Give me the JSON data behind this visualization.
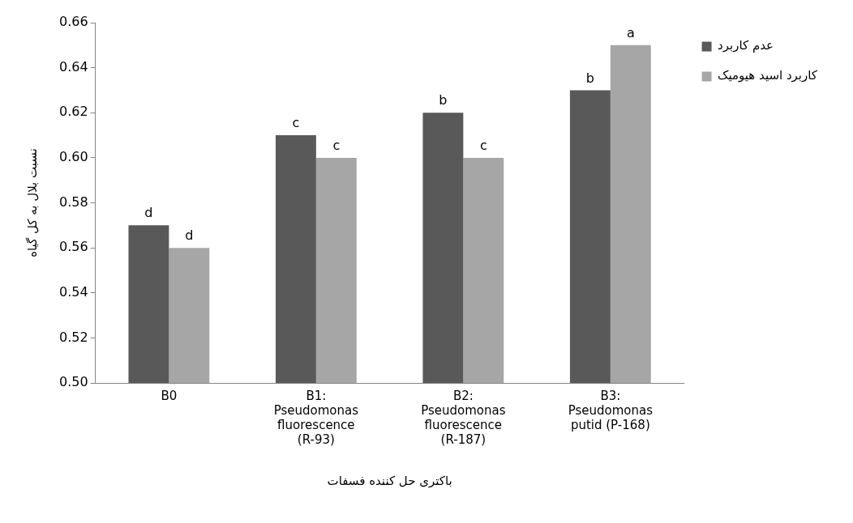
{
  "chart_data": {
    "type": "bar",
    "xlabel": "باکتری حل کننده فسفات",
    "ylabel": "نسبت بلال به کل گیاه",
    "categories": [
      "B0",
      "B1: Pseudomonas fluorescence (R-93)",
      "B2: Pseudomonas fluorescence (R-187)",
      "B3: Pseudomonas putid (P-168)"
    ],
    "series": [
      {
        "name": "عدم کاربرد",
        "color": "#595959",
        "values": [
          0.57,
          0.61,
          0.62,
          0.63
        ]
      },
      {
        "name": "کاربرد اسید هیومیک",
        "color": "#a6a6a6",
        "values": [
          0.56,
          0.6,
          0.6,
          0.65
        ]
      }
    ],
    "ylim": [
      0.5,
      0.66
    ],
    "yticks": [
      {
        "value": 0.5,
        "label": "0.50"
      },
      {
        "value": 0.52,
        "label": "0.52"
      },
      {
        "value": 0.54,
        "label": "0.54"
      },
      {
        "value": 0.56,
        "label": "0.56"
      },
      {
        "value": 0.58,
        "label": "0.58"
      },
      {
        "value": 0.6,
        "label": "0.60"
      },
      {
        "value": 0.62,
        "label": "0.62"
      },
      {
        "value": 0.64,
        "label": "0.64"
      },
      {
        "value": 0.66,
        "label": "0.66"
      }
    ],
    "annotations": [
      {
        "text": "d",
        "x": "B0",
        "y": 0.57
      },
      {
        "text": "d",
        "x": "B0",
        "y": 0.56
      },
      {
        "text": "c",
        "x": "B1: Pseudomonas fluorescence (R-93)",
        "y": 0.61
      },
      {
        "text": "c",
        "x": "B1: Pseudomonas fluorescence (R-93)",
        "y": 0.6
      },
      {
        "text": "b",
        "x": "B2: Pseudomonas fluorescence (R-187)",
        "y": 0.62
      },
      {
        "text": "c",
        "x": "B2: Pseudomonas fluorescence (R-187)",
        "y": 0.6
      },
      {
        "text": "b",
        "x": "B3: Pseudomonas putid (P-168)",
        "y": 0.63
      },
      {
        "text": "a",
        "x": "B3: Pseudomonas putid (P-168)",
        "y": 0.65
      }
    ],
    "grid": false,
    "legend": "right"
  }
}
